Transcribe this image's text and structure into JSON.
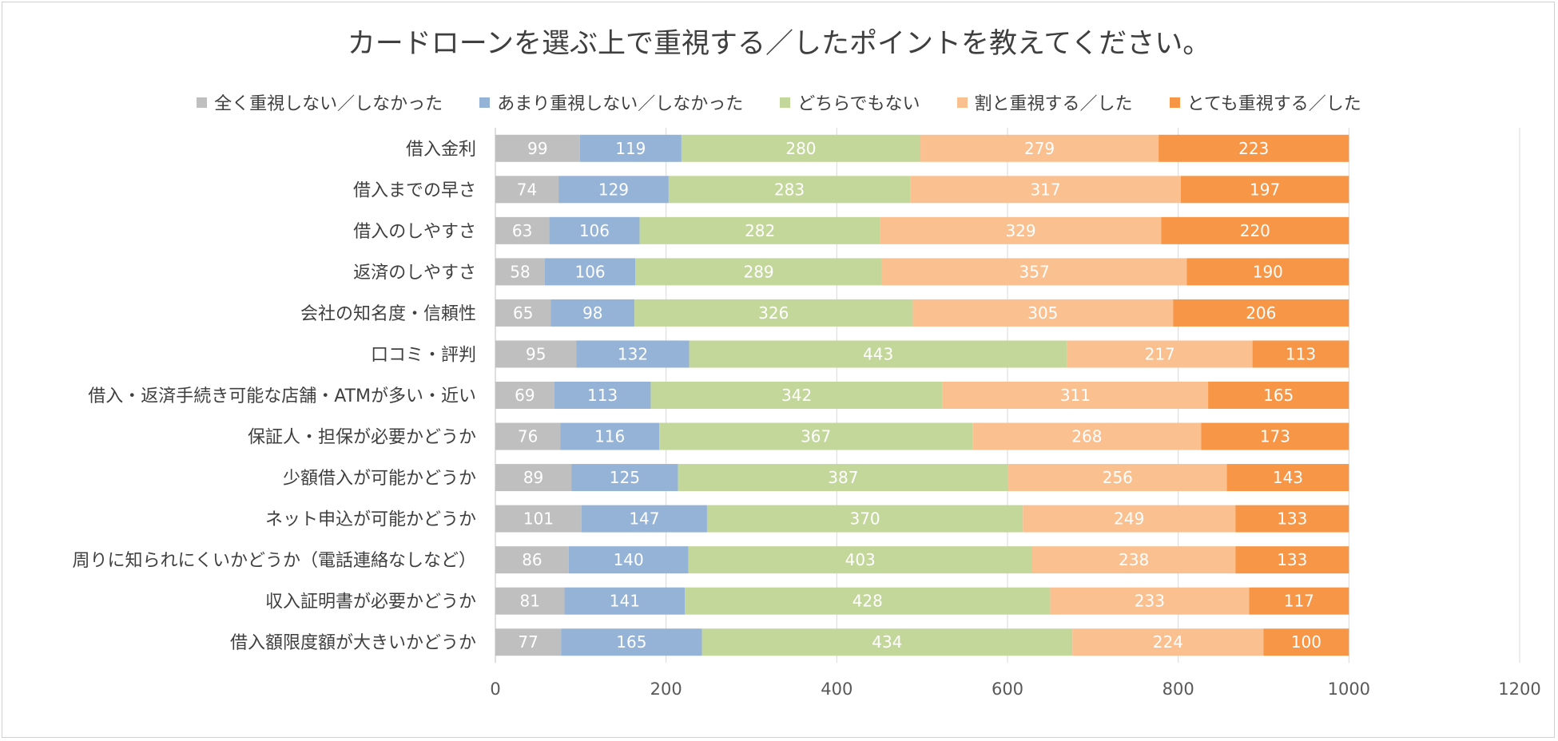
{
  "chart_data": {
    "type": "bar",
    "orientation": "horizontal",
    "stacked": true,
    "title": "カードローンを選ぶ上で重視する／したポイントを教えてください。",
    "xlabel": "",
    "ylabel": "",
    "xlim": [
      0,
      1200
    ],
    "xticks": [
      0,
      200,
      400,
      600,
      800,
      1000,
      1200
    ],
    "grid": true,
    "legend_position": "top",
    "categories": [
      "借入金利",
      "借入までの早さ",
      "借入のしやすさ",
      "返済のしやすさ",
      "会社の知名度・信頼性",
      "口コミ・評判",
      "借入・返済手続き可能な店舗・ATMが多い・近い",
      "保証人・担保が必要かどうか",
      "少額借入が可能かどうか",
      "ネット申込が可能かどうか",
      "周りに知られにくいかどうか（電話連絡なしなど）",
      "収入証明書が必要かどうか",
      "借入額限度額が大きいかどうか"
    ],
    "series": [
      {
        "name": "全く重視しない／しなかった",
        "color": "#bfbfbf",
        "values": [
          99,
          74,
          63,
          58,
          65,
          95,
          69,
          76,
          89,
          101,
          86,
          81,
          77
        ]
      },
      {
        "name": "あまり重視しない／しなかった",
        "color": "#95b3d7",
        "values": [
          119,
          129,
          106,
          106,
          98,
          132,
          113,
          116,
          125,
          147,
          140,
          141,
          165
        ]
      },
      {
        "name": "どちらでもない",
        "color": "#c4d79b",
        "values": [
          280,
          283,
          282,
          289,
          326,
          443,
          342,
          367,
          387,
          370,
          403,
          428,
          434
        ]
      },
      {
        "name": "割と重視する／した",
        "color": "#fac090",
        "values": [
          279,
          317,
          329,
          357,
          305,
          217,
          311,
          268,
          256,
          249,
          238,
          233,
          224
        ]
      },
      {
        "name": "とても重視する／した",
        "color": "#f79646",
        "values": [
          223,
          197,
          220,
          190,
          206,
          113,
          165,
          173,
          143,
          133,
          133,
          117,
          100
        ]
      }
    ]
  }
}
